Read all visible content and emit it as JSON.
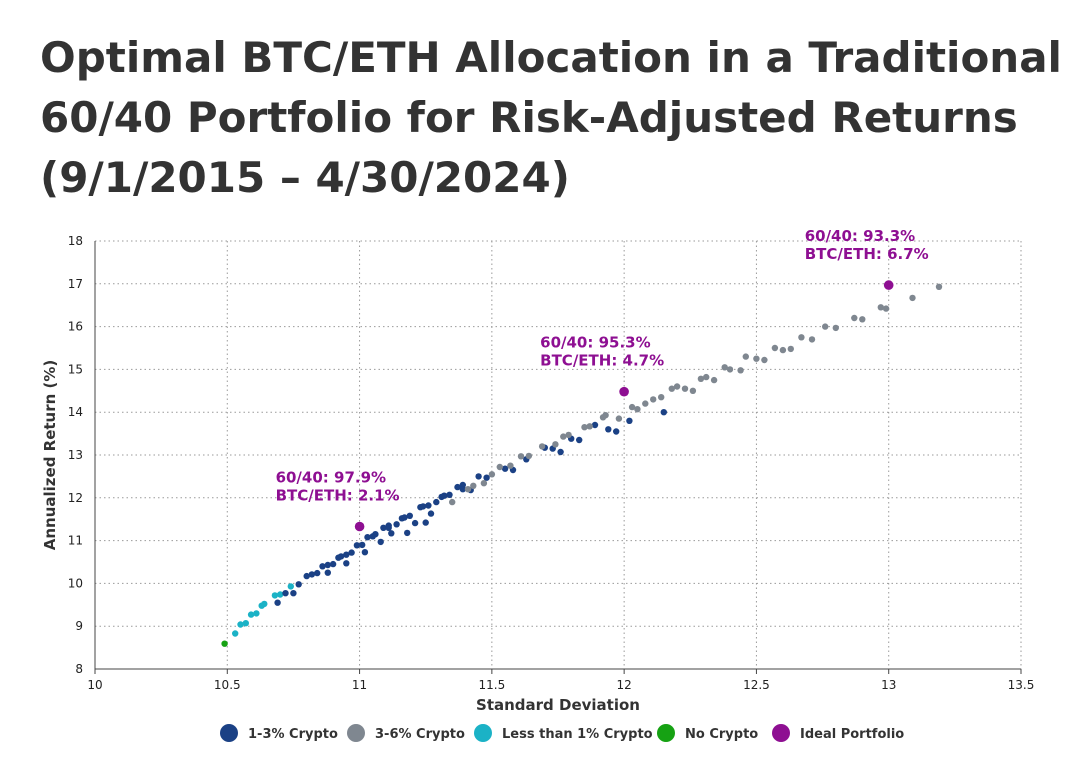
{
  "title_lines": [
    "Optimal BTC/ETH Allocation in a Traditional",
    "60/40 Portfolio for Risk-Adjusted Returns",
    "(9/1/2015 – 4/30/2024)"
  ],
  "colors": {
    "1-3": "#1b4185",
    "3-6": "#7f8790",
    "lt1": "#1bb2c6",
    "none": "#16a213",
    "ideal": "#8e0f92"
  },
  "chart_data": {
    "type": "scatter",
    "xlabel": "Standard Deviation",
    "ylabel": "Annualized Return (%)",
    "xlim": [
      10,
      13.5
    ],
    "ylim": [
      8,
      18
    ],
    "xticks": [
      "10",
      "10.5",
      "11",
      "11.5",
      "12",
      "12.5",
      "13",
      "13.5"
    ],
    "yticks": [
      "8",
      "9",
      "10",
      "11",
      "12",
      "13",
      "14",
      "15",
      "16",
      "17",
      "18"
    ],
    "grid": true,
    "legend_position": "bottom",
    "legend": [
      {
        "key": "1-3",
        "label": "1-3% Crypto"
      },
      {
        "key": "3-6",
        "label": "3-6% Crypto"
      },
      {
        "key": "lt1",
        "label": "Less than 1% Crypto"
      },
      {
        "key": "none",
        "label": "No Crypto"
      },
      {
        "key": "ideal",
        "label": "Ideal Portfolio"
      }
    ],
    "annotations": [
      {
        "lines": [
          "60/40: 97.9%",
          "BTC/ETH: 2.1%"
        ],
        "x": 11.0,
        "y": 11.33
      },
      {
        "lines": [
          "60/40: 95.3%",
          "BTC/ETH: 4.7%"
        ],
        "x": 12.0,
        "y": 14.48
      },
      {
        "lines": [
          "60/40: 93.3%",
          "BTC/ETH: 6.7%"
        ],
        "x": 13.0,
        "y": 16.97
      }
    ],
    "series": [
      {
        "key": "none",
        "points": [
          [
            10.49,
            8.59
          ]
        ]
      },
      {
        "key": "lt1",
        "points": [
          [
            10.53,
            8.83
          ],
          [
            10.55,
            9.04
          ],
          [
            10.57,
            9.07
          ],
          [
            10.59,
            9.27
          ],
          [
            10.61,
            9.3
          ],
          [
            10.63,
            9.48
          ],
          [
            10.64,
            9.52
          ],
          [
            10.68,
            9.72
          ],
          [
            10.7,
            9.74
          ],
          [
            10.74,
            9.93
          ]
        ]
      },
      {
        "key": "1-3",
        "points": [
          [
            10.69,
            9.55
          ],
          [
            10.72,
            9.77
          ],
          [
            10.75,
            9.77
          ],
          [
            10.77,
            9.98
          ],
          [
            10.8,
            10.17
          ],
          [
            10.82,
            10.21
          ],
          [
            10.84,
            10.24
          ],
          [
            10.86,
            10.4
          ],
          [
            10.88,
            10.43
          ],
          [
            10.88,
            10.25
          ],
          [
            10.9,
            10.45
          ],
          [
            10.92,
            10.6
          ],
          [
            10.93,
            10.63
          ],
          [
            10.95,
            10.67
          ],
          [
            10.95,
            10.47
          ],
          [
            10.97,
            10.72
          ],
          [
            10.99,
            10.89
          ],
          [
            11.01,
            10.9
          ],
          [
            11.02,
            10.73
          ],
          [
            11.03,
            11.08
          ],
          [
            11.05,
            11.1
          ],
          [
            11.06,
            11.15
          ],
          [
            11.08,
            10.97
          ],
          [
            11.09,
            11.3
          ],
          [
            11.11,
            11.35
          ],
          [
            11.11,
            11.3
          ],
          [
            11.12,
            11.17
          ],
          [
            11.14,
            11.38
          ],
          [
            11.16,
            11.52
          ],
          [
            11.17,
            11.54
          ],
          [
            11.18,
            11.18
          ],
          [
            11.19,
            11.58
          ],
          [
            11.21,
            11.41
          ],
          [
            11.23,
            11.78
          ],
          [
            11.24,
            11.8
          ],
          [
            11.25,
            11.42
          ],
          [
            11.26,
            11.82
          ],
          [
            11.27,
            11.63
          ],
          [
            11.29,
            11.9
          ],
          [
            11.31,
            12.02
          ],
          [
            11.32,
            12.05
          ],
          [
            11.34,
            12.07
          ],
          [
            11.37,
            12.25
          ],
          [
            11.39,
            12.3
          ],
          [
            11.39,
            12.2
          ],
          [
            11.42,
            12.18
          ],
          [
            11.45,
            12.5
          ],
          [
            11.48,
            12.47
          ],
          [
            11.55,
            12.68
          ],
          [
            11.58,
            12.65
          ],
          [
            11.63,
            12.9
          ],
          [
            11.7,
            13.17
          ],
          [
            11.73,
            13.15
          ],
          [
            11.76,
            13.07
          ],
          [
            11.8,
            13.38
          ],
          [
            11.83,
            13.35
          ],
          [
            11.89,
            13.7
          ],
          [
            11.94,
            13.6
          ],
          [
            11.97,
            13.55
          ],
          [
            12.02,
            13.8
          ],
          [
            12.15,
            14.0
          ]
        ]
      },
      {
        "key": "3-6",
        "points": [
          [
            11.35,
            11.9
          ],
          [
            11.41,
            12.2
          ],
          [
            11.43,
            12.28
          ],
          [
            11.47,
            12.34
          ],
          [
            11.5,
            12.55
          ],
          [
            11.53,
            12.72
          ],
          [
            11.57,
            12.75
          ],
          [
            11.61,
            12.97
          ],
          [
            11.64,
            12.98
          ],
          [
            11.69,
            13.2
          ],
          [
            11.74,
            13.25
          ],
          [
            11.77,
            13.43
          ],
          [
            11.79,
            13.47
          ],
          [
            11.85,
            13.65
          ],
          [
            11.87,
            13.67
          ],
          [
            11.92,
            13.88
          ],
          [
            11.93,
            13.93
          ],
          [
            11.98,
            13.85
          ],
          [
            12.03,
            14.12
          ],
          [
            12.05,
            14.07
          ],
          [
            12.08,
            14.2
          ],
          [
            12.11,
            14.3
          ],
          [
            12.14,
            14.35
          ],
          [
            12.18,
            14.55
          ],
          [
            12.2,
            14.6
          ],
          [
            12.23,
            14.55
          ],
          [
            12.26,
            14.5
          ],
          [
            12.29,
            14.78
          ],
          [
            12.31,
            14.82
          ],
          [
            12.34,
            14.75
          ],
          [
            12.38,
            15.05
          ],
          [
            12.4,
            15.0
          ],
          [
            12.44,
            14.98
          ],
          [
            12.46,
            15.3
          ],
          [
            12.5,
            15.25
          ],
          [
            12.53,
            15.22
          ],
          [
            12.57,
            15.5
          ],
          [
            12.6,
            15.45
          ],
          [
            12.63,
            15.48
          ],
          [
            12.67,
            15.75
          ],
          [
            12.71,
            15.7
          ],
          [
            12.76,
            16.0
          ],
          [
            12.8,
            15.97
          ],
          [
            12.87,
            16.2
          ],
          [
            12.9,
            16.17
          ],
          [
            12.97,
            16.45
          ],
          [
            12.99,
            16.42
          ],
          [
            13.09,
            16.67
          ],
          [
            13.19,
            16.93
          ]
        ]
      },
      {
        "key": "ideal",
        "points": [
          [
            11.0,
            11.33
          ],
          [
            12.0,
            14.48
          ],
          [
            13.0,
            16.97
          ]
        ]
      }
    ]
  }
}
